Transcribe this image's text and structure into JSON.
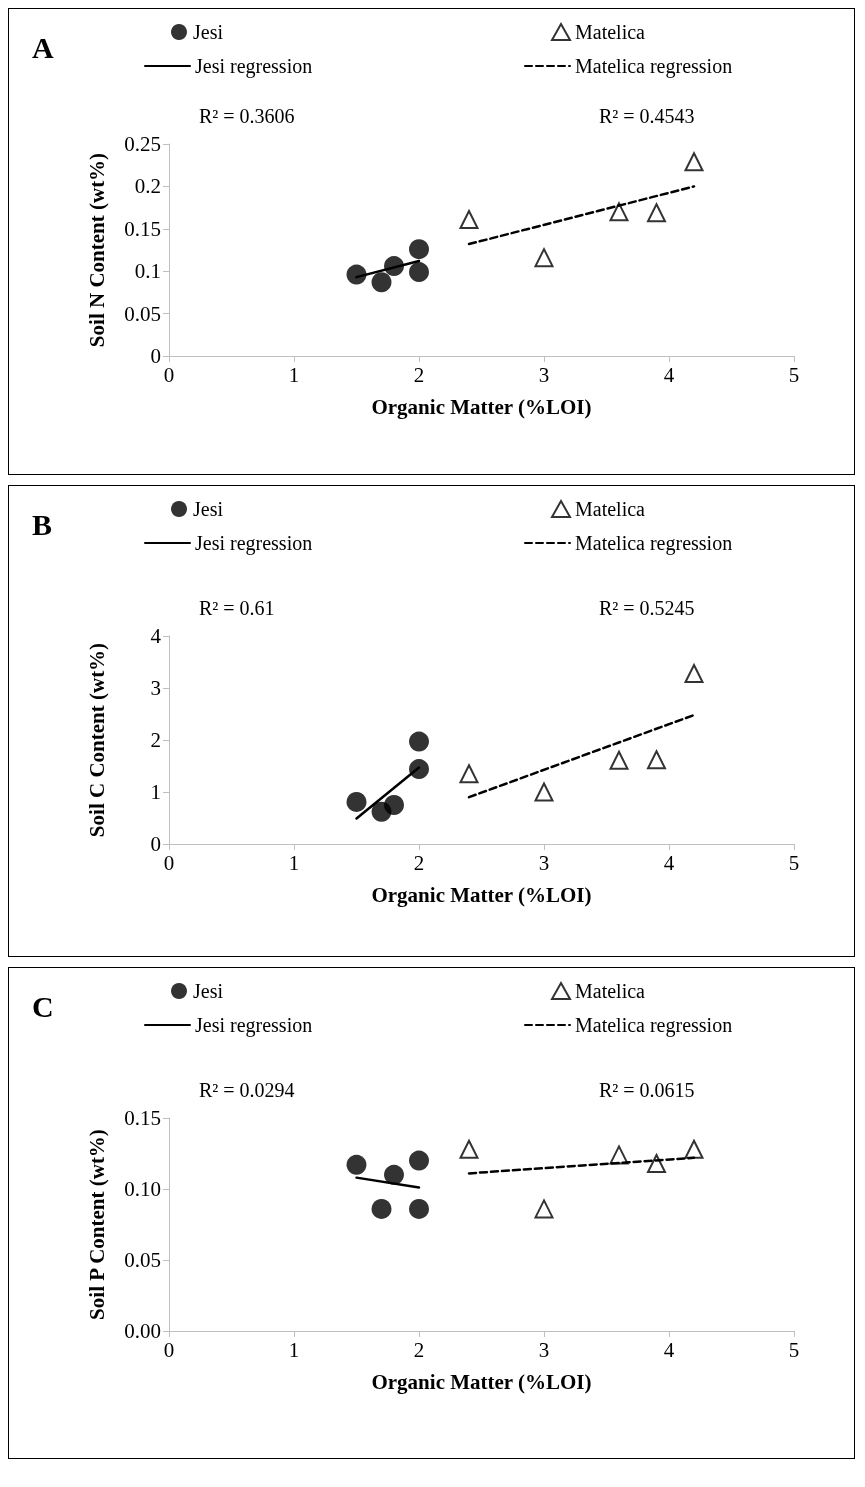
{
  "chart_data": [
    {
      "type": "scatter",
      "title": "A",
      "xlabel": "Organic Matter (%LOI)",
      "ylabel": "Soil N Content (wt%)",
      "xlim": [
        0,
        5
      ],
      "xticks": [
        0,
        1,
        2,
        3,
        4,
        5
      ],
      "ylim": [
        0,
        0.25
      ],
      "yticks": [
        0,
        0.05,
        0.1,
        0.15,
        0.2,
        0.25
      ],
      "grid": false,
      "legend": "top",
      "annotations": [
        "R² = 0.3606",
        "R² = 0.4543"
      ],
      "series": [
        {
          "name": "Jesi",
          "type": "scatter",
          "marker": "circle",
          "color": "#000000",
          "x": [
            1.5,
            1.7,
            1.8,
            2.0,
            2.0
          ],
          "values": [
            0.096,
            0.087,
            0.106,
            0.126,
            0.099
          ]
        },
        {
          "name": "Matelica",
          "type": "scatter",
          "marker": "triangle",
          "color": "#000000",
          "x": [
            2.4,
            3.0,
            3.6,
            3.9,
            4.2
          ],
          "values": [
            0.161,
            0.116,
            0.17,
            0.169,
            0.229
          ]
        },
        {
          "name": "Jesi regression",
          "type": "line",
          "marker": "none",
          "line_style": "solid",
          "color": "#000000",
          "x": [
            1.5,
            2.0
          ],
          "values": [
            0.093,
            0.112
          ]
        },
        {
          "name": "Matelica regression",
          "type": "line",
          "marker": "none",
          "line_style": "dashed",
          "color": "#000000",
          "x": [
            2.4,
            4.2
          ],
          "values": [
            0.132,
            0.2
          ]
        }
      ]
    },
    {
      "type": "scatter",
      "title": "B",
      "xlabel": "Organic Matter (%LOI)",
      "ylabel": "Soil C Content (wt%)",
      "xlim": [
        0,
        5
      ],
      "xticks": [
        0,
        1,
        2,
        3,
        4,
        5
      ],
      "ylim": [
        0,
        4
      ],
      "yticks": [
        0,
        1,
        2,
        3,
        4
      ],
      "grid": false,
      "legend": "top",
      "annotations": [
        "R² = 0.61",
        "R² = 0.5245"
      ],
      "series": [
        {
          "name": "Jesi",
          "type": "scatter",
          "marker": "circle",
          "color": "#000000",
          "x": [
            1.5,
            1.7,
            1.8,
            2.0,
            2.0
          ],
          "values": [
            0.81,
            0.62,
            0.75,
            1.97,
            1.44
          ]
        },
        {
          "name": "Matelica",
          "type": "scatter",
          "marker": "triangle",
          "color": "#000000",
          "x": [
            2.4,
            3.0,
            3.6,
            3.9,
            4.2
          ],
          "values": [
            1.35,
            1.0,
            1.61,
            1.62,
            3.28
          ]
        },
        {
          "name": "Jesi regression",
          "type": "line",
          "marker": "none",
          "line_style": "solid",
          "color": "#000000",
          "x": [
            1.5,
            2.0
          ],
          "values": [
            0.49,
            1.47
          ]
        },
        {
          "name": "Matelica regression",
          "type": "line",
          "marker": "none",
          "line_style": "dashed",
          "color": "#000000",
          "x": [
            2.4,
            4.2
          ],
          "values": [
            0.9,
            2.48
          ]
        }
      ]
    },
    {
      "type": "scatter",
      "title": "C",
      "xlabel": "Organic Matter (%LOI)",
      "ylabel": "Soil P Content (wt%)",
      "xlim": [
        0,
        5
      ],
      "xticks": [
        0,
        1,
        2,
        3,
        4,
        5
      ],
      "ylim": [
        0,
        0.15
      ],
      "yticks": [
        {
          "value": 0,
          "label": "0.00"
        },
        {
          "value": 0.05,
          "label": "0.05"
        },
        {
          "value": 0.1,
          "label": "0.10"
        },
        {
          "value": 0.15,
          "label": "0.15"
        }
      ],
      "grid": false,
      "legend": "top",
      "annotations": [
        "R² = 0.0294",
        "R² = 0.0615"
      ],
      "series": [
        {
          "name": "Jesi",
          "type": "scatter",
          "marker": "circle",
          "color": "#000000",
          "x": [
            1.5,
            1.7,
            1.8,
            2.0,
            2.0
          ],
          "values": [
            0.117,
            0.086,
            0.11,
            0.12,
            0.086
          ]
        },
        {
          "name": "Matelica",
          "type": "scatter",
          "marker": "triangle",
          "color": "#000000",
          "x": [
            2.4,
            3.0,
            3.6,
            3.9,
            4.2
          ],
          "values": [
            0.128,
            0.086,
            0.124,
            0.118,
            0.128
          ]
        },
        {
          "name": "Jesi regression",
          "type": "line",
          "marker": "none",
          "line_style": "solid",
          "color": "#000000",
          "x": [
            1.5,
            2.0
          ],
          "values": [
            0.108,
            0.101
          ]
        },
        {
          "name": "Matelica regression",
          "type": "line",
          "marker": "none",
          "line_style": "dashed",
          "color": "#000000",
          "x": [
            2.4,
            4.2
          ],
          "values": [
            0.111,
            0.122
          ]
        }
      ]
    }
  ]
}
